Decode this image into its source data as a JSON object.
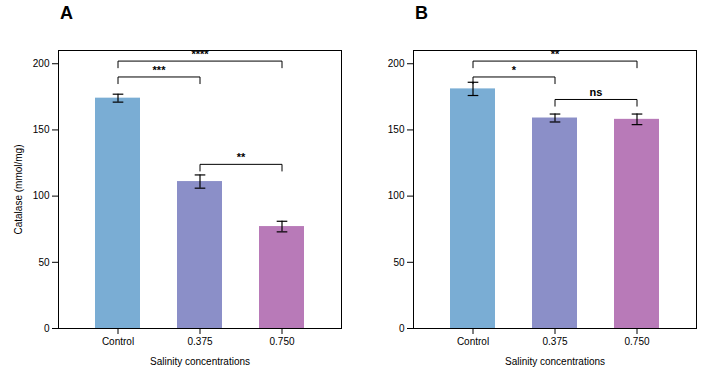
{
  "chart_data": [
    {
      "type": "bar",
      "title": "A",
      "categories": [
        "Control",
        "0.375",
        "0.750"
      ],
      "values": [
        174,
        111,
        77
      ],
      "errors": [
        3,
        5,
        4
      ],
      "colors": [
        "#7aadd4",
        "#8b8fc8",
        "#b87ab8"
      ],
      "xlabel": "Salinity concentrations",
      "ylabel": "Catalase (mmol/mg)",
      "ylim": [
        0,
        210
      ],
      "yticks": [
        0,
        50,
        100,
        150,
        200
      ],
      "grid": false,
      "significance": [
        {
          "from": "Control",
          "to": "0.750",
          "y": 202,
          "label": "****"
        },
        {
          "from": "Control",
          "to": "0.375",
          "y": 190,
          "label": "***"
        },
        {
          "from": "0.375",
          "to": "0.750",
          "y": 124,
          "label": "**"
        }
      ]
    },
    {
      "type": "bar",
      "title": "B",
      "categories": [
        "Control",
        "0.375",
        "0.750"
      ],
      "values": [
        181,
        159,
        158
      ],
      "errors": [
        5,
        3,
        4
      ],
      "colors": [
        "#7aadd4",
        "#8b8fc8",
        "#b87ab8"
      ],
      "xlabel": "Salinity concentrations",
      "ylim": [
        0,
        210
      ],
      "yticks": [
        0,
        50,
        100,
        150,
        200
      ],
      "grid": false,
      "significance": [
        {
          "from": "Control",
          "to": "0.750",
          "y": 202,
          "label": "**"
        },
        {
          "from": "Control",
          "to": "0.375",
          "y": 190,
          "label": "*"
        },
        {
          "from": "0.375",
          "to": "0.750",
          "y": 173,
          "label": "ns"
        }
      ]
    }
  ]
}
